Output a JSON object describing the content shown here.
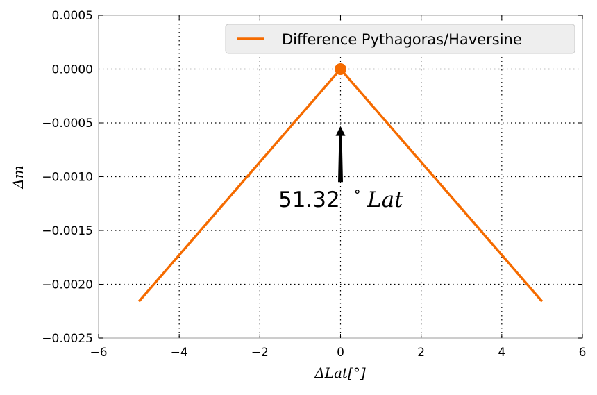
{
  "chart_data": {
    "type": "line",
    "xlabel": "ΔLat[°]",
    "ylabel": "Δm",
    "xlim": [
      -6,
      6
    ],
    "ylim": [
      -0.0025,
      0.0005
    ],
    "xticks": [
      -6,
      -4,
      -2,
      0,
      2,
      4,
      6
    ],
    "yticks": [
      0.0005,
      0.0,
      -0.0005,
      -0.001,
      -0.0015,
      -0.002,
      -0.0025
    ],
    "xtick_labels": [
      "−6",
      "−4",
      "−2",
      "0",
      "2",
      "4",
      "6"
    ],
    "ytick_labels": [
      "0.0005",
      "0.0000",
      "−0.0005",
      "−0.0010",
      "−0.0015",
      "−0.0020",
      "−0.0025"
    ],
    "grid": true,
    "legend_position": "top-right",
    "series": [
      {
        "name": "Difference Pythagoras/Haversine",
        "color": "#f56b00",
        "x": [
          -5,
          0,
          5
        ],
        "y": [
          -0.00216,
          0.0,
          -0.00216
        ]
      }
    ],
    "marker": {
      "x": 0,
      "y": 0,
      "color": "#f56b00"
    },
    "annotation": {
      "number": "51.32",
      "degree": "°",
      "unit": "Lat",
      "arrow_from": [
        0,
        -0.00105
      ],
      "arrow_to": [
        0,
        -0.00053
      ]
    }
  }
}
